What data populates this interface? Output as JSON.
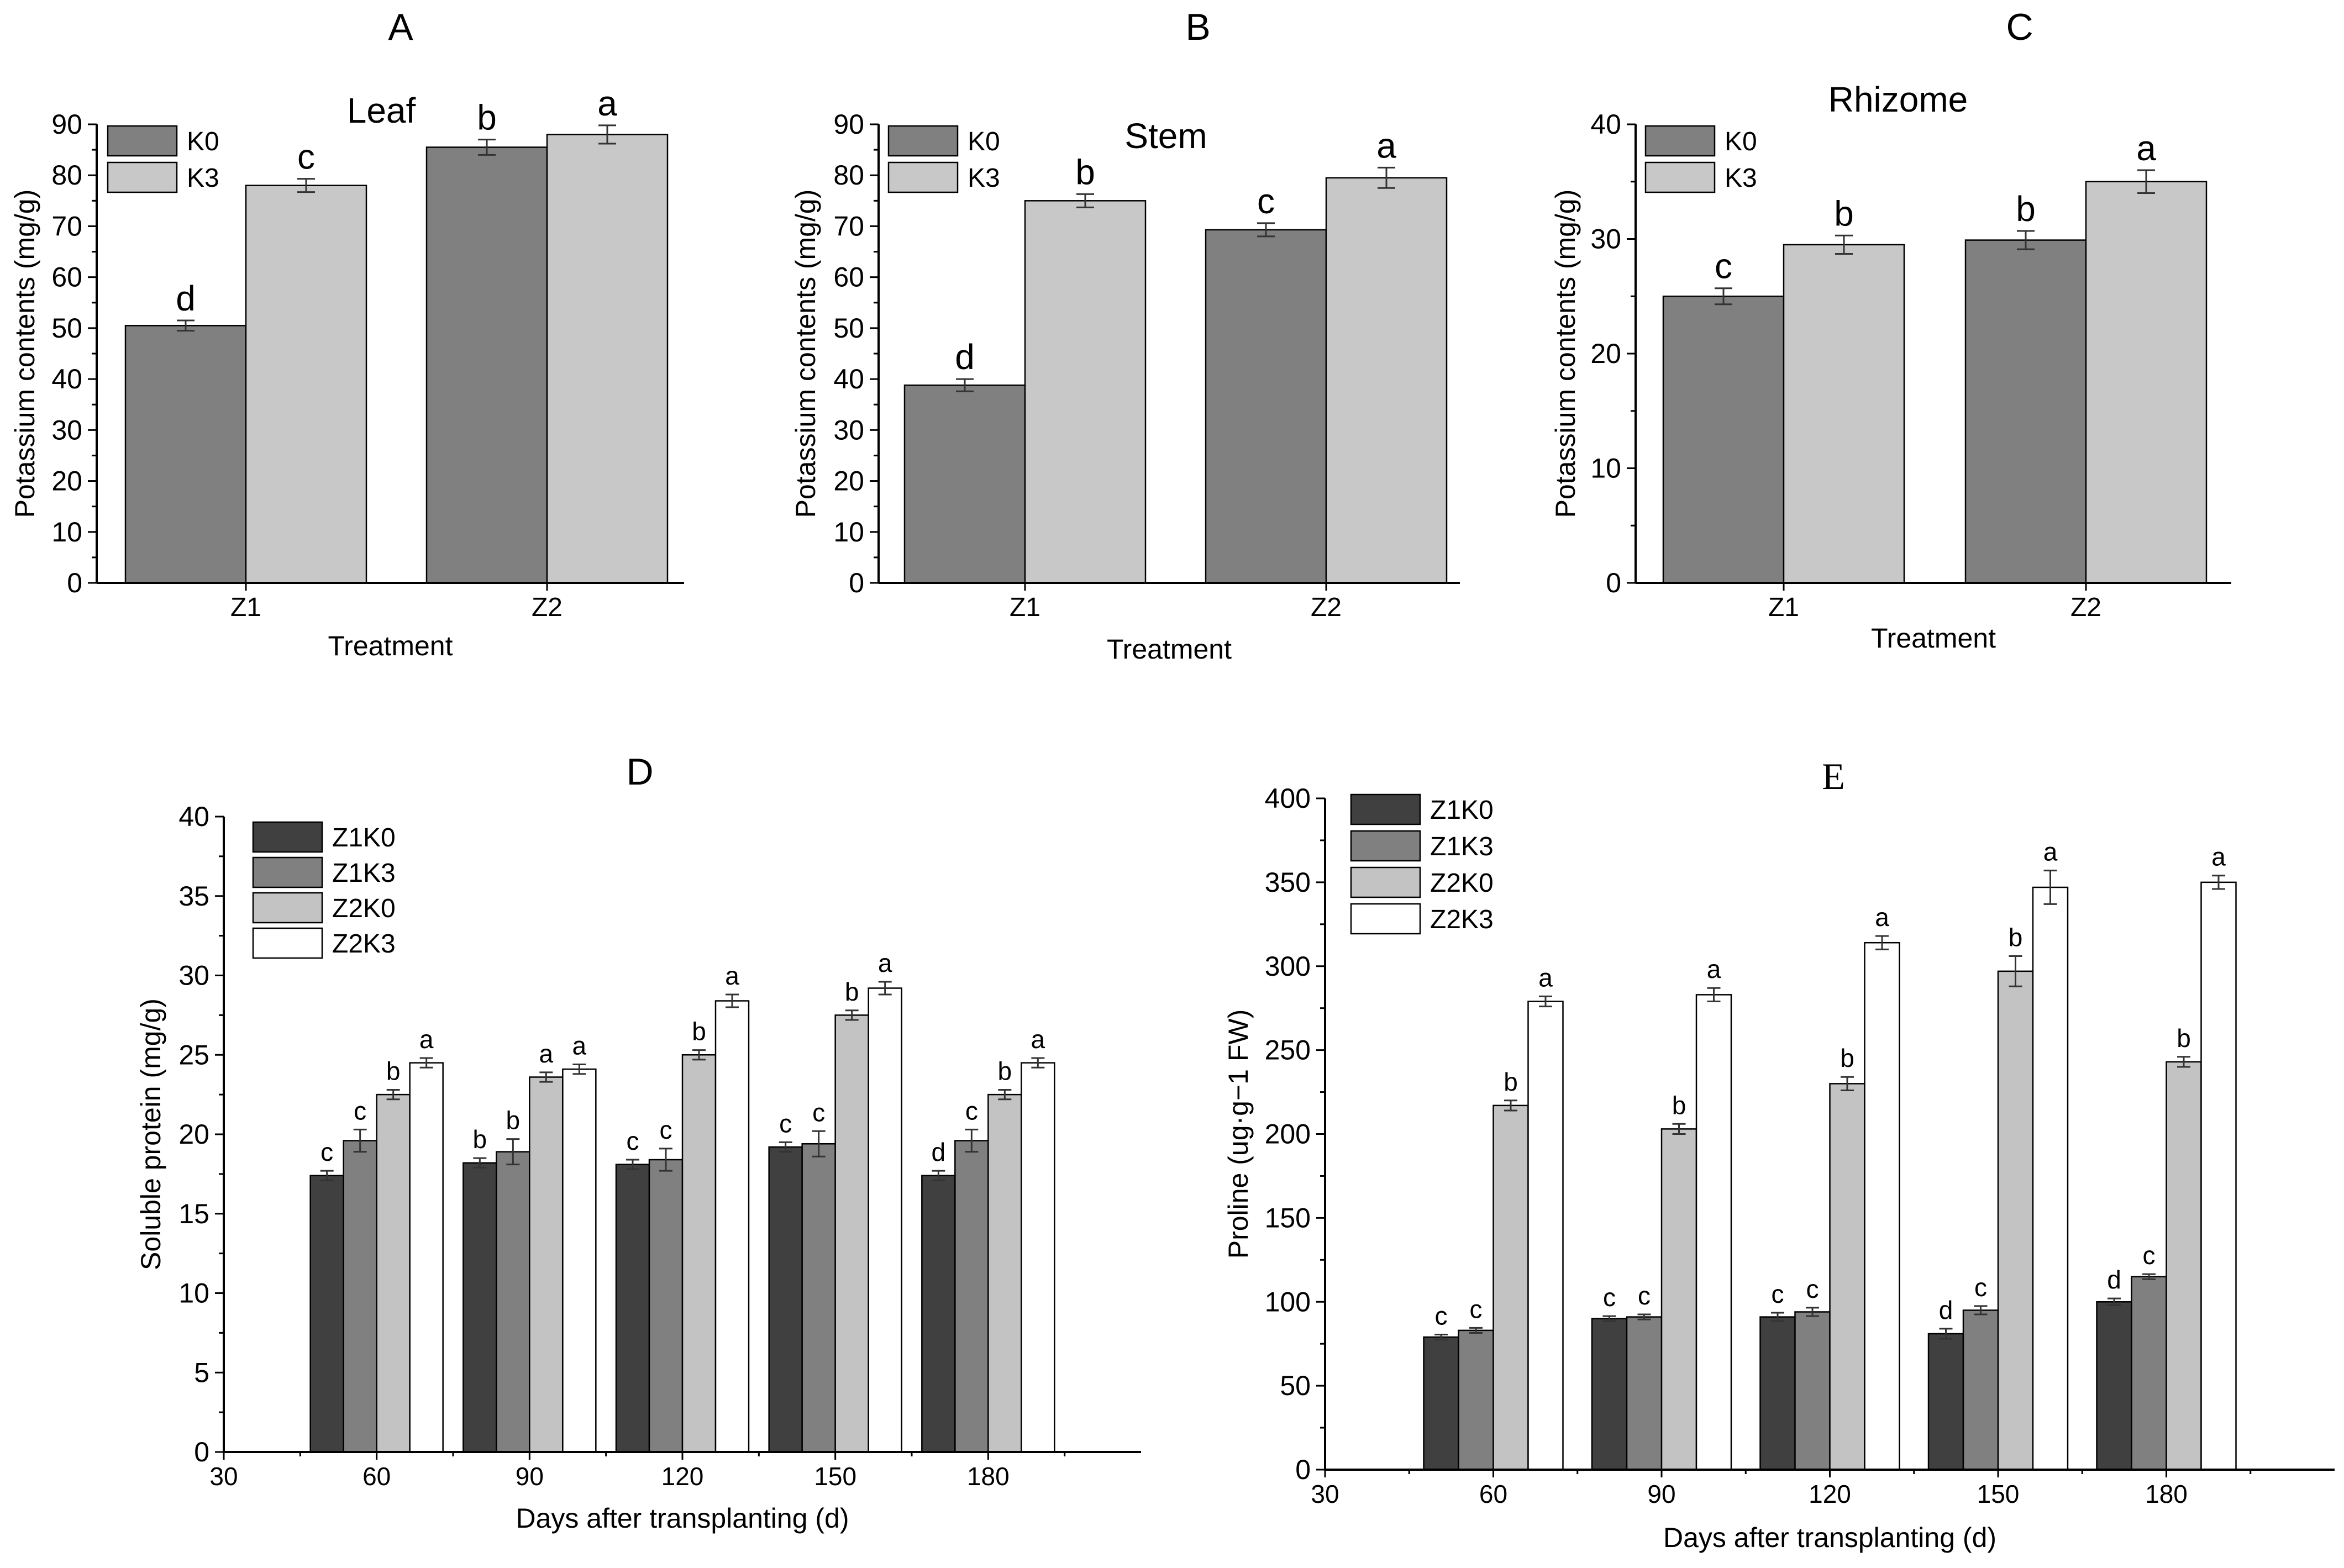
{
  "colors": {
    "K0": "#808080",
    "K3": "#c8c8c8",
    "Z1K0": "#404040",
    "Z1K3": "#808080",
    "Z2K0": "#c3c3c3",
    "Z2K3": "#ffffff"
  },
  "chart_data": [
    {
      "id": "A",
      "panel_label": "A",
      "type": "bar",
      "title": "Leaf",
      "xlabel": "Treatment",
      "ylabel": "Potassium contents (mg/g)",
      "categories": [
        "Z1",
        "Z2"
      ],
      "ylim": [
        0,
        90
      ],
      "yticks": [
        "0",
        "10",
        "20",
        "30",
        "40",
        "50",
        "60",
        "70",
        "80",
        "90"
      ],
      "series": [
        {
          "name": "K0",
          "values": [
            50.5,
            85.5
          ],
          "errors": [
            1.0,
            1.5
          ],
          "letters": [
            "d",
            "b"
          ]
        },
        {
          "name": "K3",
          "values": [
            78.0,
            88.0
          ],
          "errors": [
            1.3,
            1.8
          ],
          "letters": [
            "c",
            "a"
          ]
        }
      ]
    },
    {
      "id": "B",
      "panel_label": "B",
      "type": "bar",
      "title": "Stem",
      "xlabel": "Treatment",
      "ylabel": "Potassium contents (mg/g)",
      "categories": [
        "Z1",
        "Z2"
      ],
      "ylim": [
        0,
        90
      ],
      "yticks": [
        "0",
        "10",
        "20",
        "30",
        "40",
        "50",
        "60",
        "70",
        "80",
        "90"
      ],
      "series": [
        {
          "name": "K0",
          "values": [
            38.8,
            69.3
          ],
          "errors": [
            1.2,
            1.3
          ],
          "letters": [
            "d",
            "c"
          ]
        },
        {
          "name": "K3",
          "values": [
            75.0,
            79.5
          ],
          "errors": [
            1.3,
            2.0
          ],
          "letters": [
            "b",
            "a"
          ]
        }
      ]
    },
    {
      "id": "C",
      "panel_label": "C",
      "type": "bar",
      "title": "Rhizome",
      "xlabel": "Treatment",
      "ylabel": "Potassium contents (mg/g)",
      "categories": [
        "Z1",
        "Z2"
      ],
      "ylim": [
        0,
        40
      ],
      "yticks": [
        "0",
        "10",
        "20",
        "30",
        "40"
      ],
      "series": [
        {
          "name": "K0",
          "values": [
            25.0,
            29.9
          ],
          "errors": [
            0.7,
            0.8
          ],
          "letters": [
            "c",
            "b"
          ]
        },
        {
          "name": "K3",
          "values": [
            29.5,
            35.0
          ],
          "errors": [
            0.8,
            1.0
          ],
          "letters": [
            "b",
            "a"
          ]
        }
      ]
    },
    {
      "id": "D",
      "panel_label": "D",
      "type": "bar",
      "title": "",
      "xlabel": "Days after transplanting (d)",
      "ylabel": "Soluble protein (mg/g)",
      "categories": [
        "60",
        "90",
        "120",
        "150",
        "180"
      ],
      "xticks": [
        "30",
        "60",
        "90",
        "120",
        "150",
        "180"
      ],
      "ylim": [
        0,
        40
      ],
      "yticks": [
        "0",
        "5",
        "10",
        "15",
        "20",
        "25",
        "30",
        "35",
        "40"
      ],
      "series": [
        {
          "name": "Z1K0",
          "values": [
            17.4,
            18.2,
            18.1,
            19.2,
            17.4
          ],
          "errors": [
            0.3,
            0.3,
            0.3,
            0.3,
            0.3
          ],
          "letters": [
            "c",
            "b",
            "c",
            "c",
            "d"
          ]
        },
        {
          "name": "Z1K3",
          "values": [
            19.6,
            18.9,
            18.4,
            19.4,
            19.6
          ],
          "errors": [
            0.7,
            0.8,
            0.7,
            0.8,
            0.7
          ],
          "letters": [
            "c",
            "b",
            "c",
            "c",
            "c"
          ]
        },
        {
          "name": "Z2K0",
          "values": [
            22.5,
            23.6,
            25.0,
            27.5,
            22.5
          ],
          "errors": [
            0.3,
            0.3,
            0.3,
            0.3,
            0.3
          ],
          "letters": [
            "b",
            "a",
            "b",
            "b",
            "b"
          ]
        },
        {
          "name": "Z2K3",
          "values": [
            24.5,
            24.1,
            28.4,
            29.2,
            24.5
          ],
          "errors": [
            0.3,
            0.3,
            0.4,
            0.4,
            0.3
          ],
          "letters": [
            "a",
            "a",
            "a",
            "a",
            "a"
          ]
        }
      ]
    },
    {
      "id": "E",
      "panel_label": "E",
      "type": "bar",
      "title": "",
      "xlabel": "Days after transplanting (d)",
      "ylabel": "Proline (ug·g−1 FW)",
      "categories": [
        "60",
        "90",
        "120",
        "150",
        "180"
      ],
      "xticks": [
        "30",
        "60",
        "90",
        "120",
        "150",
        "180"
      ],
      "ylim": [
        0,
        400
      ],
      "yticks": [
        "0",
        "50",
        "100",
        "150",
        "200",
        "250",
        "300",
        "350",
        "400"
      ],
      "series": [
        {
          "name": "Z1K0",
          "values": [
            79,
            90,
            91,
            81,
            100
          ],
          "errors": [
            1.5,
            1.5,
            2.5,
            3,
            2
          ],
          "letters": [
            "c",
            "c",
            "c",
            "d",
            "d"
          ]
        },
        {
          "name": "Z1K3",
          "values": [
            83,
            91,
            94,
            95,
            115
          ],
          "errors": [
            1.5,
            1.5,
            2.5,
            2.5,
            1.5
          ],
          "letters": [
            "c",
            "c",
            "c",
            "c",
            "c"
          ]
        },
        {
          "name": "Z2K0",
          "values": [
            217,
            203,
            230,
            297,
            243
          ],
          "errors": [
            3,
            3,
            4,
            9,
            3
          ],
          "letters": [
            "b",
            "b",
            "b",
            "b",
            "b"
          ]
        },
        {
          "name": "Z2K3",
          "values": [
            279,
            283,
            314,
            347,
            350
          ],
          "errors": [
            3,
            4,
            4,
            10,
            4
          ],
          "letters": [
            "a",
            "a",
            "a",
            "a",
            "a"
          ]
        }
      ]
    }
  ]
}
